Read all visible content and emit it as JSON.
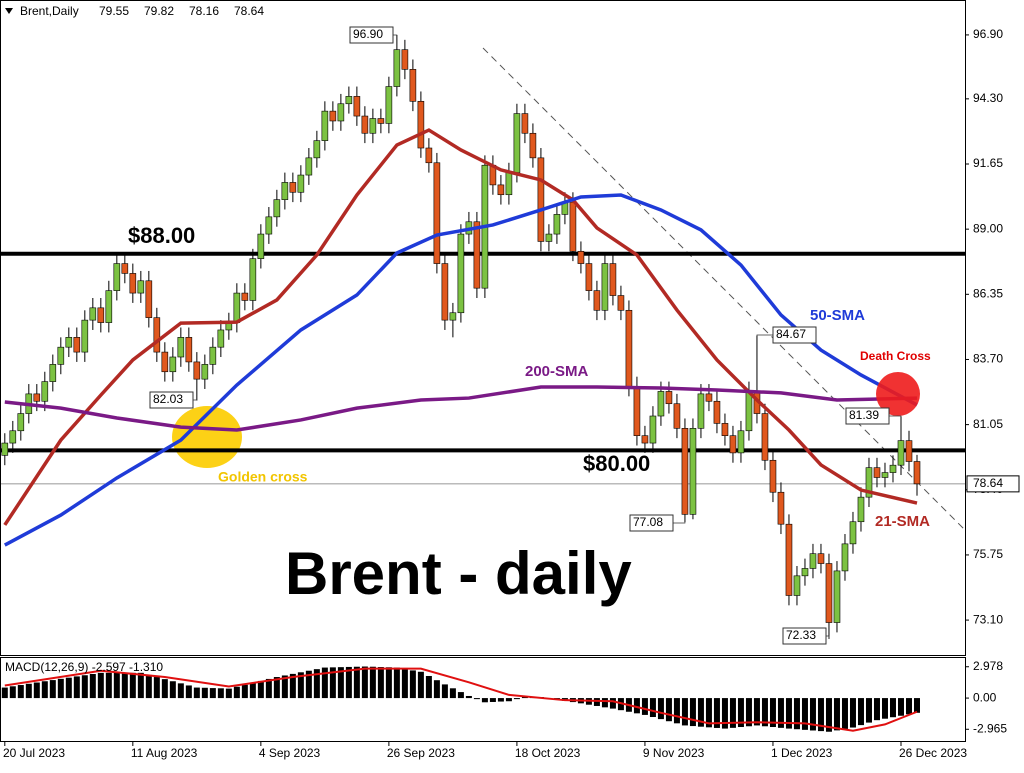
{
  "chart_data": {
    "type": "candlestick",
    "title": "Brent,Daily",
    "up_color": "#7cc242",
    "down_color": "#e0581e",
    "ohlc": [
      [
        79.8,
        80.7,
        79.4,
        80.3
      ],
      [
        80.3,
        81.2,
        79.9,
        80.8
      ],
      [
        80.8,
        81.9,
        80.4,
        81.5
      ],
      [
        81.5,
        82.7,
        81.1,
        82.3
      ],
      [
        82.3,
        82.7,
        81.6,
        82.0
      ],
      [
        82.0,
        83.2,
        81.6,
        82.8
      ],
      [
        82.8,
        83.9,
        82.4,
        83.5
      ],
      [
        83.5,
        84.6,
        83.1,
        84.2
      ],
      [
        84.2,
        85.0,
        83.8,
        84.6
      ],
      [
        84.6,
        85.0,
        83.6,
        84.0
      ],
      [
        84.0,
        85.7,
        83.6,
        85.3
      ],
      [
        85.3,
        86.2,
        84.9,
        85.8
      ],
      [
        85.8,
        86.2,
        84.8,
        85.2
      ],
      [
        85.2,
        86.9,
        84.8,
        86.5
      ],
      [
        86.5,
        88.0,
        86.1,
        87.6
      ],
      [
        87.6,
        88.0,
        86.8,
        87.2
      ],
      [
        87.2,
        87.6,
        86.0,
        86.4
      ],
      [
        86.4,
        87.3,
        86.0,
        86.9
      ],
      [
        86.9,
        87.3,
        85.0,
        85.4
      ],
      [
        85.4,
        85.8,
        83.6,
        84.0
      ],
      [
        84.0,
        84.4,
        82.8,
        83.2
      ],
      [
        83.2,
        84.2,
        82.8,
        83.8
      ],
      [
        83.8,
        85.0,
        83.4,
        84.6
      ],
      [
        84.6,
        85.0,
        83.2,
        83.6
      ],
      [
        83.6,
        84.0,
        82.03,
        82.9
      ],
      [
        82.9,
        83.9,
        82.5,
        83.5
      ],
      [
        83.5,
        84.6,
        83.1,
        84.2
      ],
      [
        84.2,
        85.3,
        83.8,
        84.9
      ],
      [
        84.9,
        85.6,
        84.5,
        85.2
      ],
      [
        85.2,
        86.8,
        84.8,
        86.4
      ],
      [
        86.4,
        86.8,
        85.7,
        86.1
      ],
      [
        86.1,
        88.2,
        85.7,
        87.8
      ],
      [
        87.8,
        89.2,
        87.4,
        88.8
      ],
      [
        88.8,
        89.9,
        88.4,
        89.5
      ],
      [
        89.5,
        90.6,
        89.1,
        90.2
      ],
      [
        90.2,
        91.3,
        89.8,
        90.9
      ],
      [
        90.9,
        91.3,
        90.1,
        90.5
      ],
      [
        90.5,
        91.6,
        90.1,
        91.2
      ],
      [
        91.2,
        92.3,
        90.8,
        91.9
      ],
      [
        91.9,
        93.0,
        91.5,
        92.6
      ],
      [
        92.6,
        94.2,
        92.2,
        93.8
      ],
      [
        93.8,
        94.2,
        93.0,
        93.4
      ],
      [
        93.4,
        94.5,
        93.0,
        94.1
      ],
      [
        94.1,
        94.8,
        93.7,
        94.4
      ],
      [
        94.4,
        94.8,
        93.2,
        93.6
      ],
      [
        93.6,
        94.0,
        92.5,
        92.9
      ],
      [
        92.9,
        93.9,
        92.5,
        93.5
      ],
      [
        93.5,
        93.9,
        92.9,
        93.3
      ],
      [
        93.3,
        95.2,
        92.9,
        94.8
      ],
      [
        94.8,
        96.9,
        94.4,
        96.3
      ],
      [
        96.3,
        96.7,
        95.1,
        95.5
      ],
      [
        95.5,
        95.9,
        93.8,
        94.2
      ],
      [
        94.2,
        94.6,
        91.9,
        92.3
      ],
      [
        92.3,
        92.7,
        91.3,
        91.7
      ],
      [
        91.7,
        92.1,
        87.2,
        87.6
      ],
      [
        87.6,
        88.0,
        84.9,
        85.3
      ],
      [
        85.3,
        86.0,
        84.6,
        85.6
      ],
      [
        85.6,
        89.2,
        85.2,
        88.8
      ],
      [
        88.8,
        89.7,
        88.4,
        89.3
      ],
      [
        89.3,
        89.7,
        86.2,
        86.6
      ],
      [
        86.6,
        92.0,
        86.2,
        91.6
      ],
      [
        91.6,
        92.0,
        90.4,
        90.8
      ],
      [
        90.8,
        91.2,
        90.0,
        90.4
      ],
      [
        90.4,
        91.7,
        90.0,
        91.3
      ],
      [
        91.3,
        94.1,
        90.9,
        93.7
      ],
      [
        93.7,
        94.1,
        92.5,
        92.9
      ],
      [
        92.9,
        93.3,
        91.5,
        91.9
      ],
      [
        91.9,
        92.3,
        88.1,
        88.5
      ],
      [
        88.5,
        89.2,
        88.1,
        88.8
      ],
      [
        88.8,
        90.0,
        88.4,
        89.6
      ],
      [
        89.6,
        90.5,
        89.2,
        90.1
      ],
      [
        90.1,
        90.5,
        87.7,
        88.1
      ],
      [
        88.1,
        88.5,
        87.2,
        87.6
      ],
      [
        87.6,
        88.0,
        86.1,
        86.5
      ],
      [
        86.5,
        86.9,
        85.3,
        85.7
      ],
      [
        85.7,
        88.0,
        85.3,
        87.6
      ],
      [
        87.6,
        88.0,
        85.9,
        86.3
      ],
      [
        86.3,
        86.7,
        85.3,
        85.7
      ],
      [
        85.7,
        86.1,
        82.2,
        82.6
      ],
      [
        82.6,
        83.0,
        80.2,
        80.6
      ],
      [
        80.6,
        81.0,
        79.9,
        80.3
      ],
      [
        80.3,
        81.8,
        79.9,
        81.4
      ],
      [
        81.4,
        82.8,
        81.0,
        82.4
      ],
      [
        82.4,
        82.8,
        81.5,
        81.9
      ],
      [
        81.9,
        82.3,
        80.5,
        80.9
      ],
      [
        80.9,
        81.3,
        77.08,
        77.4
      ],
      [
        77.4,
        81.3,
        77.2,
        80.9
      ],
      [
        80.9,
        82.7,
        80.5,
        82.3
      ],
      [
        82.3,
        82.7,
        81.6,
        82.0
      ],
      [
        82.0,
        82.4,
        80.7,
        81.1
      ],
      [
        81.1,
        81.5,
        80.2,
        80.6
      ],
      [
        80.6,
        81.0,
        79.5,
        79.9
      ],
      [
        79.9,
        81.2,
        79.5,
        80.8
      ],
      [
        80.8,
        82.8,
        80.4,
        82.4
      ],
      [
        82.4,
        84.67,
        81.1,
        81.5
      ],
      [
        81.5,
        81.9,
        79.2,
        79.6
      ],
      [
        79.6,
        80.0,
        77.9,
        78.3
      ],
      [
        78.3,
        78.7,
        76.6,
        77.0
      ],
      [
        77.0,
        77.4,
        73.7,
        74.1
      ],
      [
        74.1,
        75.3,
        73.7,
        74.9
      ],
      [
        74.9,
        75.6,
        74.5,
        75.2
      ],
      [
        75.2,
        76.2,
        74.8,
        75.8
      ],
      [
        75.8,
        76.2,
        75.0,
        75.4
      ],
      [
        75.4,
        75.8,
        72.33,
        73.0
      ],
      [
        73.0,
        75.5,
        72.6,
        75.1
      ],
      [
        75.1,
        76.6,
        74.7,
        76.2
      ],
      [
        76.2,
        77.5,
        75.8,
        77.1
      ],
      [
        77.1,
        78.5,
        76.7,
        78.1
      ],
      [
        78.1,
        79.7,
        77.7,
        79.3
      ],
      [
        79.3,
        79.7,
        78.5,
        78.9
      ],
      [
        78.9,
        79.5,
        78.5,
        79.1
      ],
      [
        79.1,
        79.8,
        78.7,
        79.4
      ],
      [
        79.4,
        81.39,
        79.0,
        80.4
      ],
      [
        80.4,
        80.8,
        79.15,
        79.55
      ],
      [
        79.55,
        79.82,
        78.16,
        78.64
      ]
    ],
    "ylim": [
      71.68,
      98.32
    ],
    "yticks": [
      {
        "value": 96.9,
        "label": "96.90"
      },
      {
        "value": 94.3,
        "label": "94.30"
      },
      91.65,
      {
        "value": 89,
        "label": "89.00"
      },
      86.35,
      {
        "value": 83.7,
        "label": "83.70"
      },
      81.05,
      {
        "value": 78.4,
        "label": "78.40"
      },
      75.75,
      {
        "value": 73.1,
        "label": "73.10"
      }
    ],
    "xlim": [
      -0.6,
      120.0
    ],
    "xticks": [
      {
        "value": 0,
        "label": "20 Jul 2023"
      },
      {
        "value": 16,
        "label": "11 Aug 2023"
      },
      {
        "value": 32,
        "label": "4 Sep 2023"
      },
      {
        "value": 48,
        "label": "26 Sep 2023"
      },
      {
        "value": 64,
        "label": "18 Oct 2023"
      },
      {
        "value": 80,
        "label": "9 Nov 2023"
      },
      {
        "value": 96,
        "label": "1 Dec 2023"
      },
      {
        "value": 112,
        "label": "26 Dec 2023"
      }
    ],
    "price_labels": [
      {
        "index": 49,
        "value": 96.9,
        "label": "96.90"
      },
      {
        "index": 24,
        "value": 82.03,
        "label": "82.03"
      },
      {
        "index": 85,
        "value": 77.08,
        "label": "77.08"
      },
      {
        "index": 103,
        "value": 72.33,
        "label": "72.33"
      },
      {
        "index": 94,
        "value": 84.67,
        "label": "84.67"
      },
      {
        "index": 112,
        "value": 81.39,
        "label": "81.39"
      }
    ],
    "levels": [
      {
        "value": 88,
        "label": "$88.00"
      },
      {
        "value": 80,
        "label": "$80.00"
      }
    ],
    "sma": [
      {
        "name": "21-SMA",
        "color": "#b22a24",
        "x": [
          0,
          7,
          12,
          16,
          22,
          29,
          34,
          39,
          44,
          49,
          53,
          57,
          62,
          67,
          71,
          74,
          79,
          84,
          89,
          94,
          98,
          102,
          107,
          114
        ],
        "values": [
          76.97,
          80.42,
          82.25,
          83.68,
          85.18,
          85.22,
          86.12,
          87.95,
          90.39,
          92.42,
          93.03,
          92.22,
          91.41,
          91.0,
          90.19,
          89.05,
          87.95,
          85.71,
          83.68,
          82.05,
          80.83,
          79.41,
          78.39,
          77.86
        ]
      },
      {
        "name": "50-SMA",
        "color": "#1f3bd8",
        "x": [
          0,
          7,
          14,
          22,
          29,
          37,
          44,
          49,
          54,
          61,
          67,
          72,
          77,
          82,
          87,
          92,
          97,
          102,
          107,
          114
        ],
        "values": [
          76.15,
          77.37,
          78.88,
          80.42,
          82.66,
          84.9,
          86.32,
          88.03,
          88.76,
          89.17,
          89.78,
          90.31,
          90.39,
          89.78,
          88.97,
          87.54,
          85.51,
          84.08,
          83.07,
          81.85
        ]
      },
      {
        "name": "200-SMA",
        "color": "#7a1a86",
        "x": [
          0,
          7,
          14,
          22,
          29,
          37,
          44,
          52,
          58,
          67,
          74,
          82,
          89,
          97,
          104,
          114
        ],
        "values": [
          81.97,
          81.72,
          81.32,
          80.95,
          80.83,
          81.24,
          81.72,
          82.05,
          82.13,
          82.58,
          82.58,
          82.54,
          82.46,
          82.34,
          82.05,
          82.13
        ]
      }
    ],
    "annotations": [
      "Golden cross",
      "Death Cross"
    ],
    "watermark": "Brent - daily",
    "macd": {
      "label": "MACD(12,26,9) -2.597 -1.310",
      "histogram": [
        1.0,
        1.12,
        1.24,
        1.36,
        1.48,
        1.6,
        1.71,
        1.83,
        1.94,
        2.06,
        2.17,
        2.29,
        2.4,
        2.4,
        2.4,
        2.4,
        2.4,
        2.4,
        2.2,
        2.0,
        1.8,
        1.6,
        1.4,
        1.2,
        1.0,
        0.98,
        0.95,
        0.93,
        0.9,
        1.08,
        1.27,
        1.45,
        1.63,
        1.82,
        2.0,
        2.15,
        2.3,
        2.45,
        2.6,
        2.75,
        2.9,
        2.92,
        2.94,
        2.96,
        2.98,
        3.0,
        2.98,
        2.95,
        2.93,
        2.9,
        2.77,
        2.63,
        2.5,
        2.1,
        1.7,
        1.3,
        0.93,
        0.57,
        0.2,
        -0.1,
        -0.4,
        -0.37,
        -0.33,
        -0.3,
        -0.1,
        0.1,
        0.1,
        0.1,
        -0.02,
        -0.14,
        -0.26,
        -0.38,
        -0.5,
        -0.63,
        -0.75,
        -0.88,
        -1.0,
        -1.15,
        -1.3,
        -1.45,
        -1.6,
        -1.8,
        -2.0,
        -2.2,
        -2.4,
        -2.6,
        -2.66,
        -2.72,
        -2.78,
        -2.84,
        -2.9,
        -2.83,
        -2.75,
        -2.68,
        -2.6,
        -2.68,
        -2.75,
        -2.83,
        -2.9,
        -2.96,
        -3.02,
        -3.08,
        -3.14,
        -3.2,
        -3.07,
        -2.93,
        -2.8,
        -2.57,
        -2.33,
        -2.1,
        -1.96,
        -1.82,
        -1.68,
        -1.54,
        -1.4
      ],
      "signal": {
        "color": "#e01010",
        "x": [
          0,
          12,
          20,
          28,
          36,
          45,
          52,
          58,
          63,
          70,
          76,
          82,
          88,
          94,
          100,
          106,
          110,
          114
        ],
        "values": [
          1.2,
          2.6,
          2.0,
          1.1,
          2.0,
          2.8,
          2.8,
          1.5,
          0.3,
          -0.2,
          -0.3,
          -1.4,
          -2.4,
          -2.3,
          -2.4,
          -3.1,
          -2.5,
          -1.3
        ]
      },
      "ylim": [
        -4.08,
        3.81
      ],
      "yticks": [
        2.978,
        {
          "value": 0,
          "label": "0.00"
        },
        -2.965
      ]
    }
  }
}
